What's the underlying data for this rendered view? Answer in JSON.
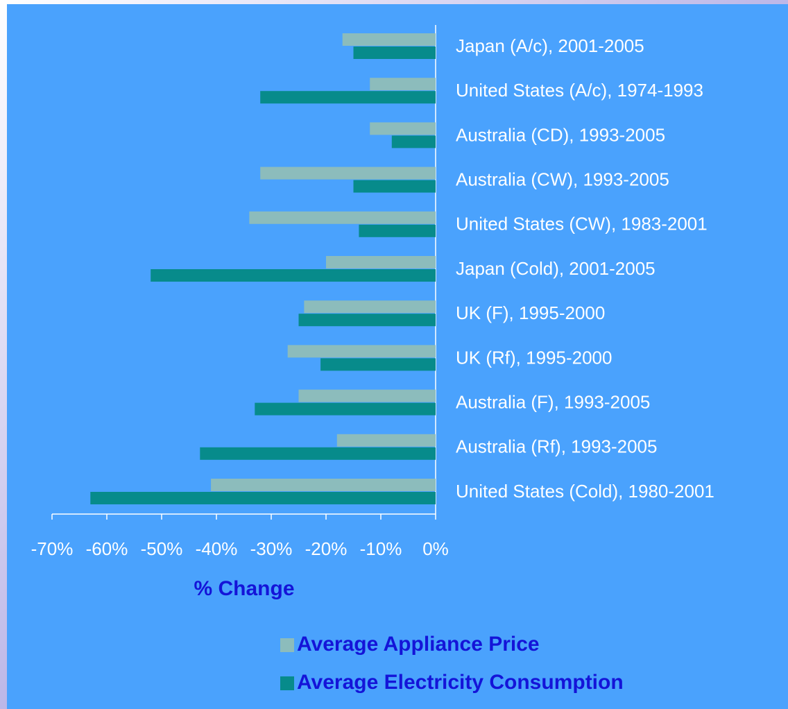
{
  "chart_data": {
    "type": "barh",
    "categories": [
      "Japan (A/c), 2001-2005",
      "United States (A/c), 1974-1993",
      "Australia (CD), 1993-2005",
      "Australia (CW), 1993-2005",
      "United States (CW), 1983-2001",
      "Japan (Cold), 2001-2005",
      "UK (F), 1995-2000",
      "UK (Rf), 1995-2000",
      "Australia (F), 1993-2005",
      "Australia (Rf), 1993-2005",
      "United States (Cold), 1980-2001"
    ],
    "series": [
      {
        "name": "Average Appliance Price",
        "color": "#8cbcbc",
        "values": [
          -17,
          -12,
          -12,
          -32,
          -34,
          -20,
          -24,
          -27,
          -25,
          -18,
          -41
        ]
      },
      {
        "name": "Average Electricity Consumption",
        "color": "#078b8b",
        "values": [
          -15,
          -32,
          -8,
          -15,
          -14,
          -52,
          -25,
          -21,
          -33,
          -43,
          -63
        ]
      }
    ],
    "xlabel": "% Change",
    "xlim": [
      -70,
      0
    ],
    "xticks": [
      {
        "value": -70,
        "label": "-70%"
      },
      {
        "value": -60,
        "label": "-60%"
      },
      {
        "value": -50,
        "label": "-50%"
      },
      {
        "value": -40,
        "label": "-40%"
      },
      {
        "value": -30,
        "label": "-30%"
      },
      {
        "value": -20,
        "label": "-20%"
      },
      {
        "value": -10,
        "label": "-10%"
      },
      {
        "value": 0,
        "label": "0%"
      }
    ],
    "legend": "bottom"
  }
}
